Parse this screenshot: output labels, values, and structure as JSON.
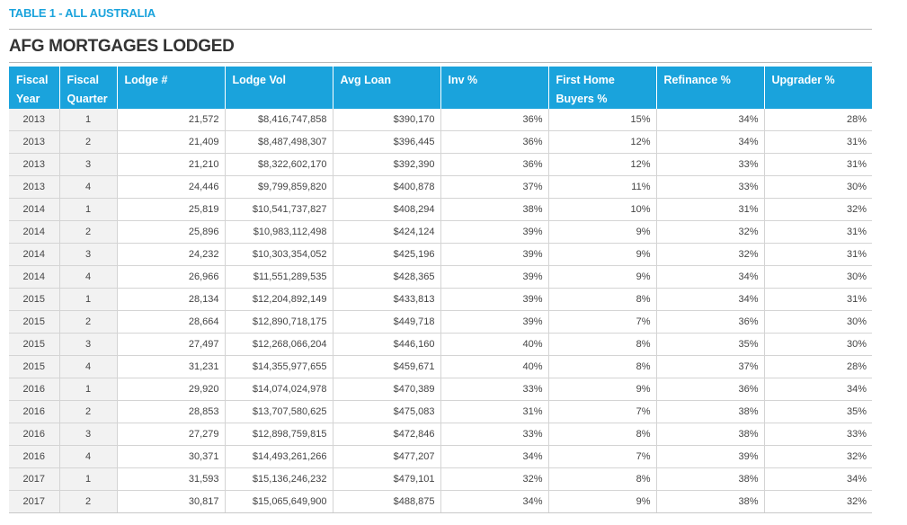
{
  "header": {
    "table_label": "TABLE 1 - ALL AUSTRALIA",
    "title": "AFG MORTGAGES LODGED"
  },
  "columns": [
    {
      "line1": "Fiscal",
      "line2": "Year"
    },
    {
      "line1": "Fiscal",
      "line2": "Quarter"
    },
    {
      "line1": "Lodge #",
      "line2": ""
    },
    {
      "line1": "Lodge Vol",
      "line2": ""
    },
    {
      "line1": "Avg Loan",
      "line2": ""
    },
    {
      "line1": "Inv %",
      "line2": ""
    },
    {
      "line1": "First Home",
      "line2": "Buyers %"
    },
    {
      "line1": "Refinance %",
      "line2": ""
    },
    {
      "line1": "Upgrader %",
      "line2": ""
    }
  ],
  "rows": [
    [
      "2013",
      "1",
      "21,572",
      "$8,416,747,858",
      "$390,170",
      "36%",
      "15%",
      "34%",
      "28%"
    ],
    [
      "2013",
      "2",
      "21,409",
      "$8,487,498,307",
      "$396,445",
      "36%",
      "12%",
      "34%",
      "31%"
    ],
    [
      "2013",
      "3",
      "21,210",
      "$8,322,602,170",
      "$392,390",
      "36%",
      "12%",
      "33%",
      "31%"
    ],
    [
      "2013",
      "4",
      "24,446",
      "$9,799,859,820",
      "$400,878",
      "37%",
      "11%",
      "33%",
      "30%"
    ],
    [
      "2014",
      "1",
      "25,819",
      "$10,541,737,827",
      "$408,294",
      "38%",
      "10%",
      "31%",
      "32%"
    ],
    [
      "2014",
      "2",
      "25,896",
      "$10,983,112,498",
      "$424,124",
      "39%",
      "9%",
      "32%",
      "31%"
    ],
    [
      "2014",
      "3",
      "24,232",
      "$10,303,354,052",
      "$425,196",
      "39%",
      "9%",
      "32%",
      "31%"
    ],
    [
      "2014",
      "4",
      "26,966",
      "$11,551,289,535",
      "$428,365",
      "39%",
      "9%",
      "34%",
      "30%"
    ],
    [
      "2015",
      "1",
      "28,134",
      "$12,204,892,149",
      "$433,813",
      "39%",
      "8%",
      "34%",
      "31%"
    ],
    [
      "2015",
      "2",
      "28,664",
      "$12,890,718,175",
      "$449,718",
      "39%",
      "7%",
      "36%",
      "30%"
    ],
    [
      "2015",
      "3",
      "27,497",
      "$12,268,066,204",
      "$446,160",
      "40%",
      "8%",
      "35%",
      "30%"
    ],
    [
      "2015",
      "4",
      "31,231",
      "$14,355,977,655",
      "$459,671",
      "40%",
      "8%",
      "37%",
      "28%"
    ],
    [
      "2016",
      "1",
      "29,920",
      "$14,074,024,978",
      "$470,389",
      "33%",
      "9%",
      "36%",
      "34%"
    ],
    [
      "2016",
      "2",
      "28,853",
      "$13,707,580,625",
      "$475,083",
      "31%",
      "7%",
      "38%",
      "35%"
    ],
    [
      "2016",
      "3",
      "27,279",
      "$12,898,759,815",
      "$472,846",
      "33%",
      "8%",
      "38%",
      "33%"
    ],
    [
      "2016",
      "4",
      "30,371",
      "$14,493,261,266",
      "$477,207",
      "34%",
      "7%",
      "39%",
      "32%"
    ],
    [
      "2017",
      "1",
      "31,593",
      "$15,136,246,232",
      "$479,101",
      "32%",
      "8%",
      "38%",
      "34%"
    ],
    [
      "2017",
      "2",
      "30,817",
      "$15,065,649,900",
      "$488,875",
      "34%",
      "9%",
      "38%",
      "32%"
    ]
  ],
  "colors": {
    "accent": "#1aa3dc",
    "text": "#333333",
    "first_columns_bg": "#f2f2f2"
  }
}
